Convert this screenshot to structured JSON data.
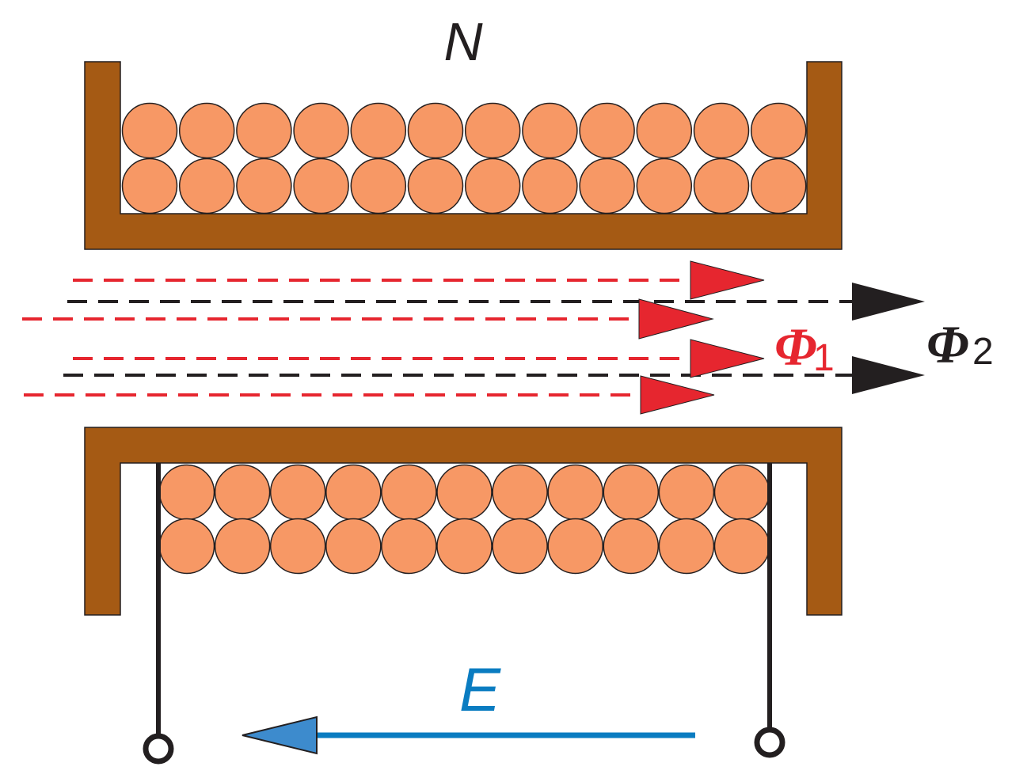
{
  "labels": {
    "turns": "N",
    "emf": "E",
    "flux1_symbol": "Φ",
    "flux1_sub": "1",
    "flux2_symbol": "Φ",
    "flux2_sub": "2"
  },
  "colors": {
    "core": "#a55a14",
    "winding": "#f79865",
    "outline": "#231f20",
    "flux1": "#e6262f",
    "flux2": "#231f20",
    "emf": "#0a7cc1",
    "emf_arrowhead": "#3d8bcd"
  },
  "winding": {
    "upper_turns_per_layer": 12,
    "lower_turns_per_layer": 11,
    "layers": 2
  }
}
